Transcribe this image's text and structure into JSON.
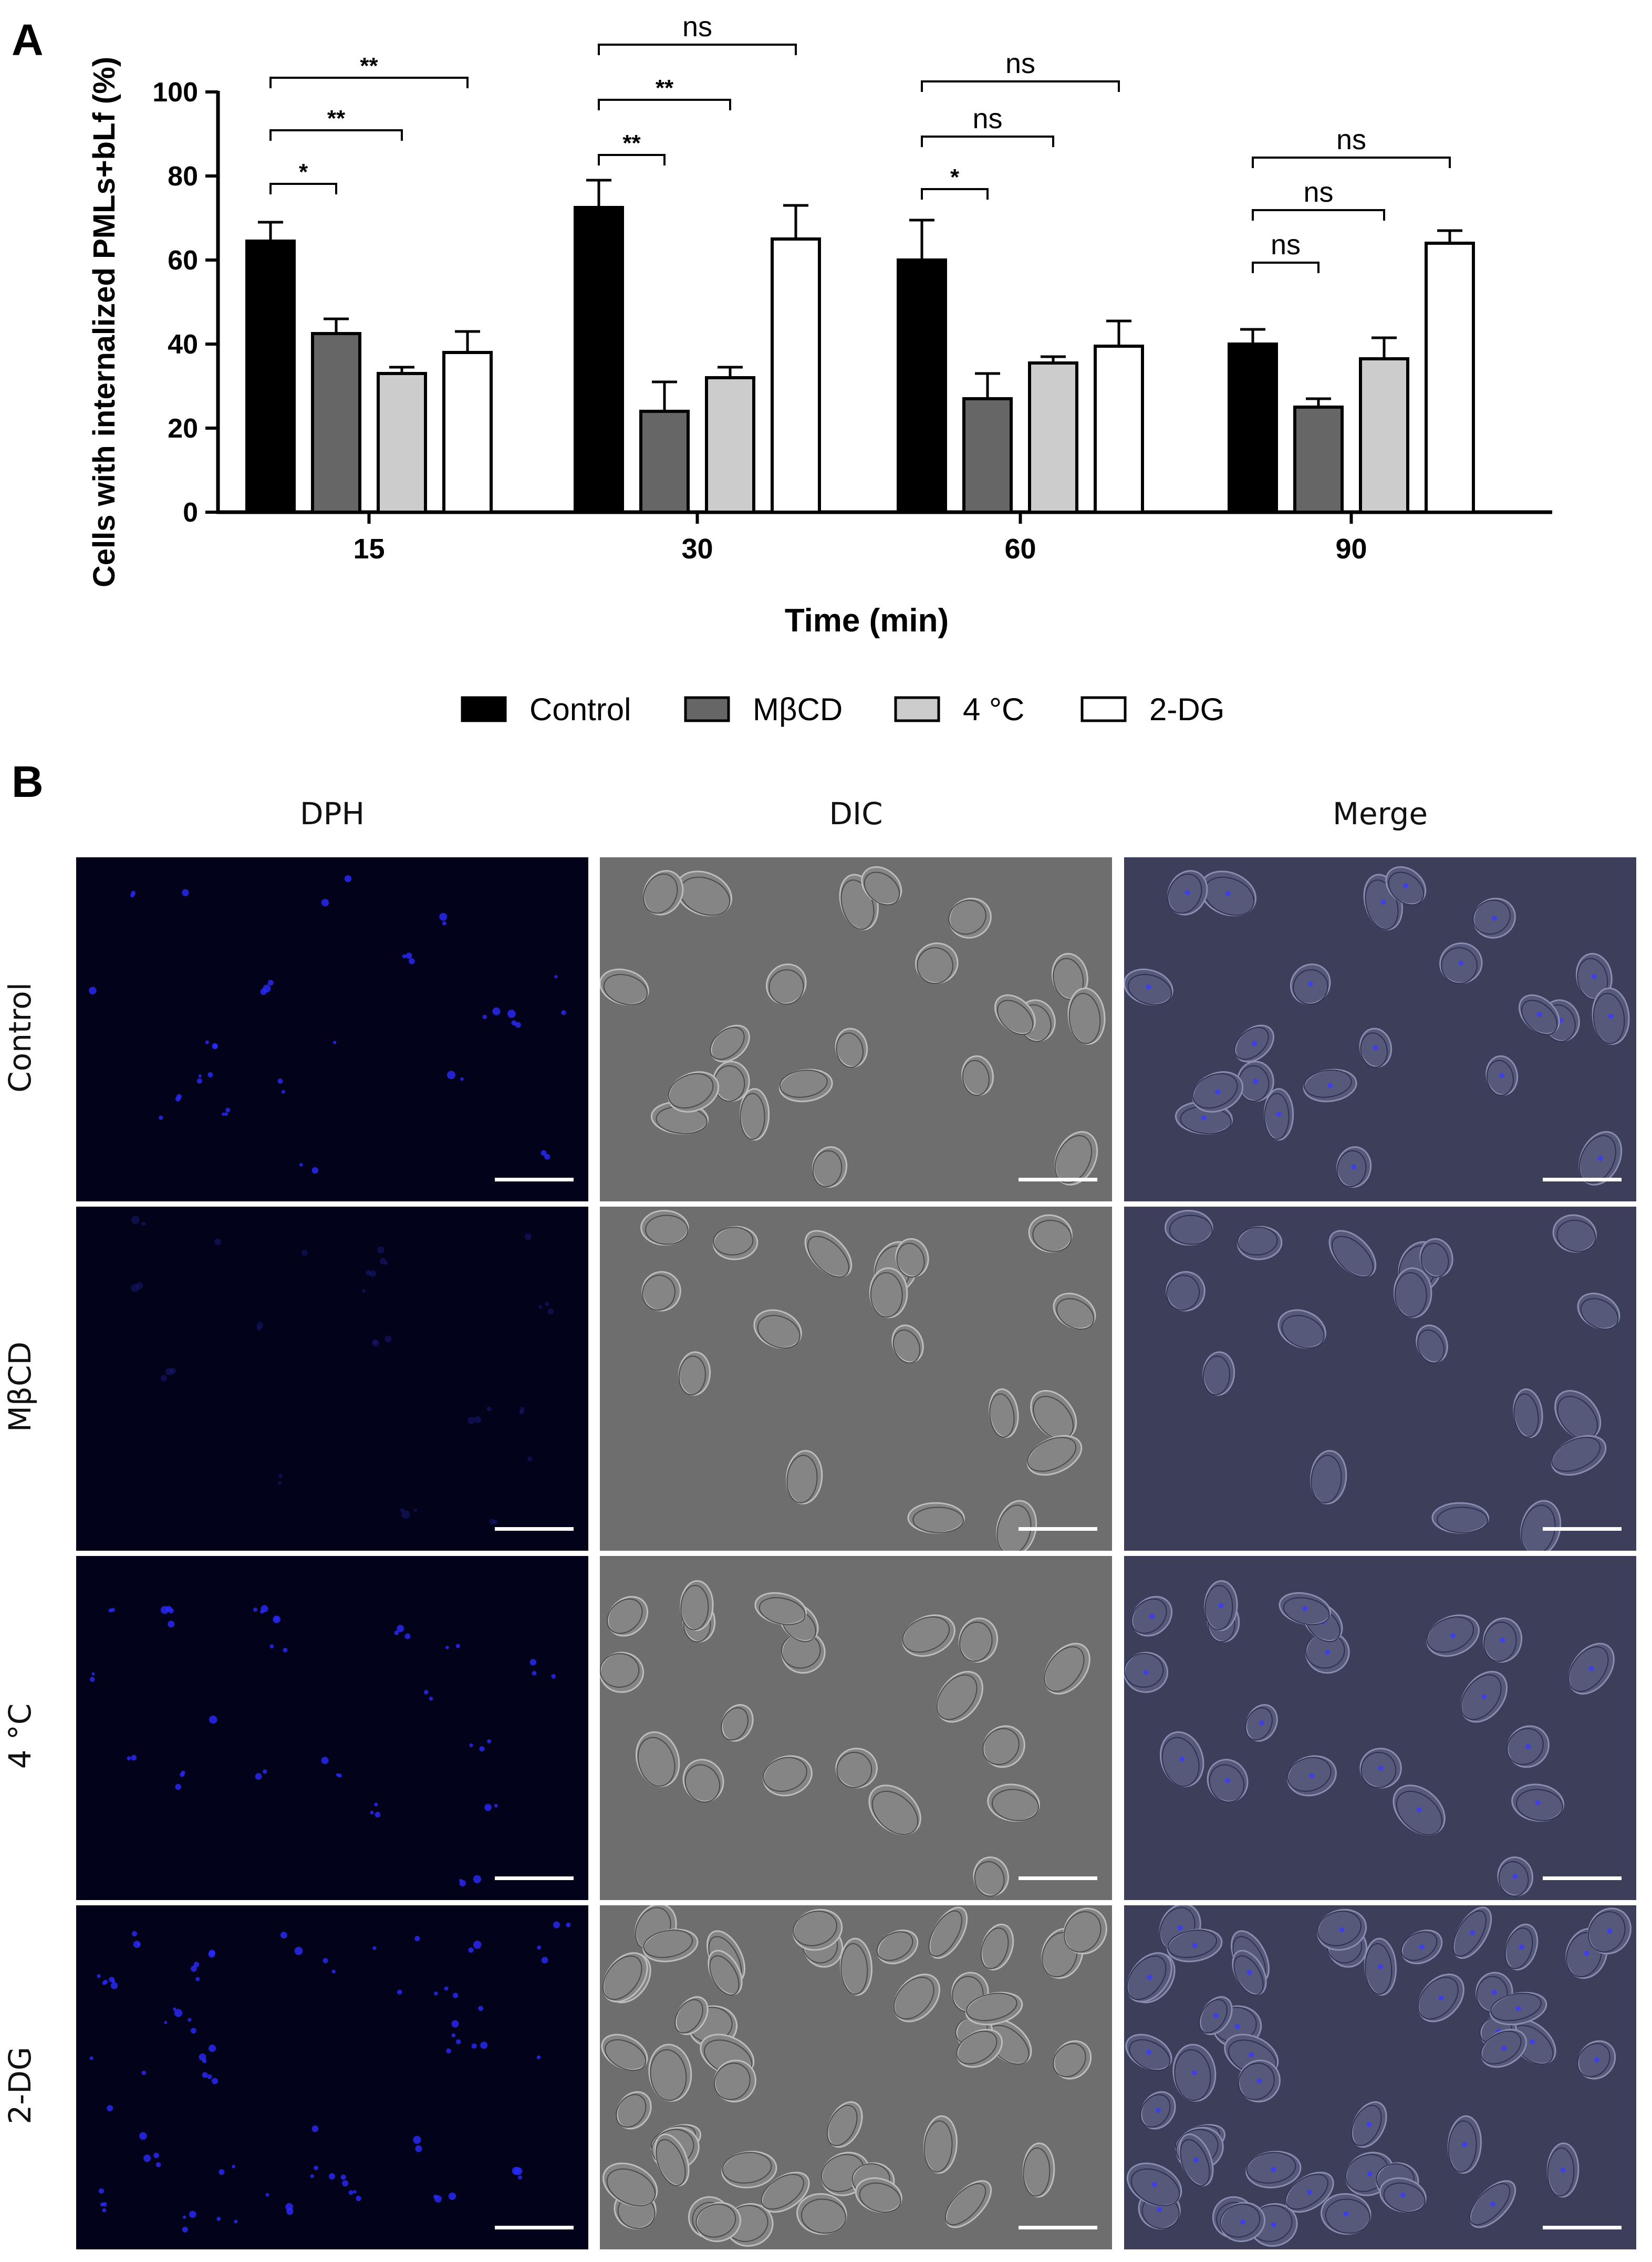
{
  "panel_a_letter": "A",
  "panel_b_letter": "B",
  "chart_data": {
    "type": "bar",
    "xlabel": "Time (min)",
    "ylabel": "Cells with internalized PMLs+bLf (%)",
    "categories": [
      "15",
      "30",
      "60",
      "90"
    ],
    "ylim": [
      0,
      100
    ],
    "yticks": [
      0,
      20,
      40,
      60,
      80,
      100
    ],
    "series": [
      {
        "name": "Control",
        "color": "#000000",
        "values": [
          64.5,
          72.5,
          60,
          40
        ],
        "errors": [
          4.5,
          6.5,
          9.5,
          3.5
        ]
      },
      {
        "name": "MβCD",
        "color": "#666666",
        "values": [
          42.5,
          24,
          27,
          25
        ],
        "errors": [
          3.5,
          7,
          6,
          2
        ]
      },
      {
        "name": "4 °C",
        "color": "#cccccc",
        "values": [
          33,
          32,
          35.5,
          36.5
        ],
        "errors": [
          1.5,
          2.5,
          1.5,
          5
        ]
      },
      {
        "name": "2-DG",
        "color": "#ffffff",
        "values": [
          38,
          65,
          39.5,
          64
        ],
        "errors": [
          5,
          8,
          6,
          3
        ]
      }
    ],
    "significance": [
      {
        "group": 0,
        "from": 0,
        "to": 1,
        "label": "*"
      },
      {
        "group": 0,
        "from": 0,
        "to": 2,
        "label": "**"
      },
      {
        "group": 0,
        "from": 0,
        "to": 3,
        "label": "**"
      },
      {
        "group": 1,
        "from": 0,
        "to": 1,
        "label": "**"
      },
      {
        "group": 1,
        "from": 0,
        "to": 2,
        "label": "**"
      },
      {
        "group": 1,
        "from": 0,
        "to": 3,
        "label": "ns"
      },
      {
        "group": 2,
        "from": 0,
        "to": 1,
        "label": "*"
      },
      {
        "group": 2,
        "from": 0,
        "to": 2,
        "label": "ns"
      },
      {
        "group": 2,
        "from": 0,
        "to": 3,
        "label": "ns"
      },
      {
        "group": 3,
        "from": 0,
        "to": 1,
        "label": "ns"
      },
      {
        "group": 3,
        "from": 0,
        "to": 2,
        "label": "ns"
      },
      {
        "group": 3,
        "from": 0,
        "to": 3,
        "label": "ns"
      }
    ],
    "legend": "bottom-center"
  },
  "micrographs": {
    "columns": [
      "DPH",
      "DIC",
      "Merge"
    ],
    "rows": [
      "Control",
      "MβCD",
      "4 °C",
      "2-DG"
    ]
  }
}
